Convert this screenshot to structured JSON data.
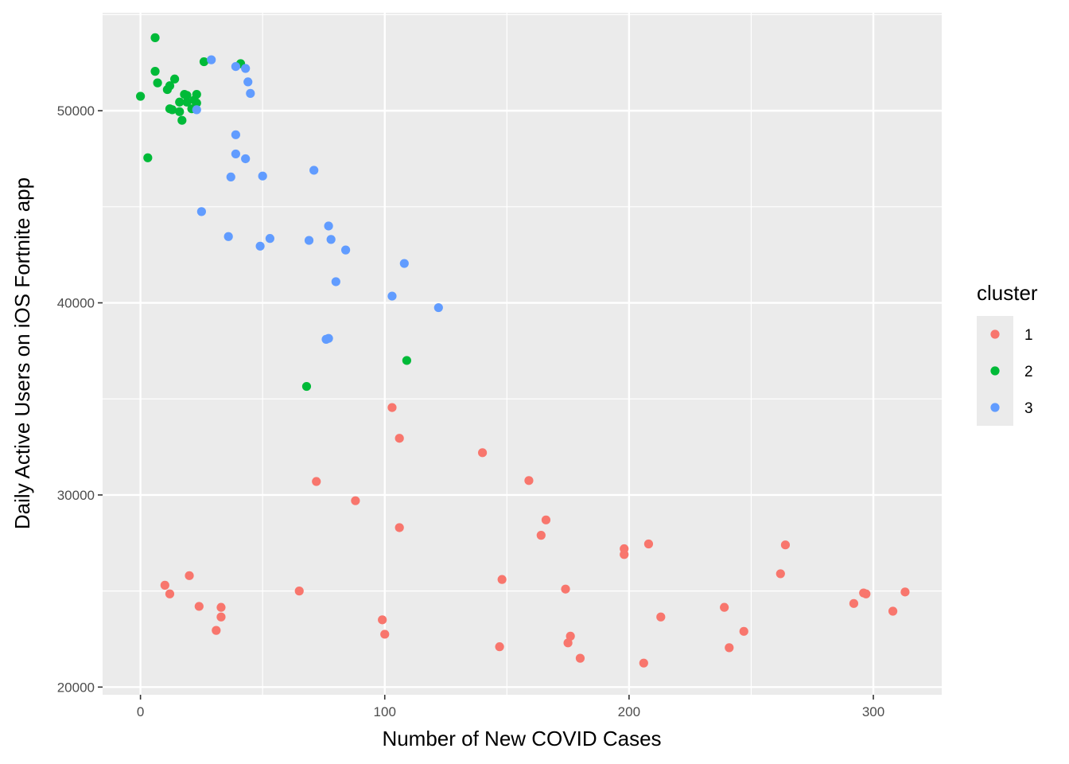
{
  "chart_data": {
    "type": "scatter",
    "title": "",
    "xlabel": "Number of New COVID Cases",
    "ylabel": "Daily Active Users on iOS Fortnite app",
    "xlim": [
      -15.5,
      328
    ],
    "ylim": [
      19600,
      55100
    ],
    "x_ticks": [
      0,
      100,
      200,
      300
    ],
    "y_ticks": [
      20000,
      30000,
      40000,
      50000
    ],
    "x_tick_labels": [
      "0",
      "100",
      "200",
      "300"
    ],
    "y_tick_labels": [
      "20000",
      "30000",
      "40000",
      "50000"
    ],
    "grid": true,
    "legend": {
      "title": "cluster",
      "position": "right"
    },
    "series": [
      {
        "name": "1",
        "color": "#F8766D",
        "points": [
          [
            10,
            25300
          ],
          [
            12,
            24850
          ],
          [
            20,
            25800
          ],
          [
            24,
            24200
          ],
          [
            31,
            22950
          ],
          [
            33,
            23650
          ],
          [
            33,
            24150
          ],
          [
            65,
            25000
          ],
          [
            72,
            30700
          ],
          [
            88,
            29700
          ],
          [
            99,
            23500
          ],
          [
            100,
            22750
          ],
          [
            103,
            34550
          ],
          [
            106,
            32950
          ],
          [
            106,
            28300
          ],
          [
            140,
            32200
          ],
          [
            147,
            22100
          ],
          [
            148,
            25600
          ],
          [
            159,
            30750
          ],
          [
            164,
            27900
          ],
          [
            166,
            28700
          ],
          [
            174,
            25100
          ],
          [
            175,
            22300
          ],
          [
            176,
            22650
          ],
          [
            180,
            21500
          ],
          [
            198,
            26900
          ],
          [
            198,
            27200
          ],
          [
            206,
            21250
          ],
          [
            208,
            27450
          ],
          [
            213,
            23650
          ],
          [
            239,
            24150
          ],
          [
            241,
            22050
          ],
          [
            247,
            22900
          ],
          [
            262,
            25900
          ],
          [
            264,
            27400
          ],
          [
            292,
            24350
          ],
          [
            296,
            24900
          ],
          [
            297,
            24850
          ],
          [
            308,
            23950
          ],
          [
            313,
            24950
          ]
        ]
      },
      {
        "name": "2",
        "color": "#00BA38",
        "points": [
          [
            0,
            50750
          ],
          [
            3,
            47550
          ],
          [
            6,
            53800
          ],
          [
            6,
            52050
          ],
          [
            7,
            51450
          ],
          [
            11,
            51100
          ],
          [
            12,
            51300
          ],
          [
            12,
            50100
          ],
          [
            13,
            50050
          ],
          [
            14,
            51650
          ],
          [
            16,
            50450
          ],
          [
            16,
            49950
          ],
          [
            17,
            49500
          ],
          [
            18,
            50850
          ],
          [
            19,
            50450
          ],
          [
            19,
            50800
          ],
          [
            21,
            50100
          ],
          [
            22,
            50550
          ],
          [
            23,
            50850
          ],
          [
            23,
            50400
          ],
          [
            26,
            52550
          ],
          [
            41,
            52450
          ],
          [
            68,
            35650
          ],
          [
            109,
            37000
          ]
        ]
      },
      {
        "name": "3",
        "color": "#619CFF",
        "points": [
          [
            23,
            50050
          ],
          [
            25,
            44750
          ],
          [
            29,
            52650
          ],
          [
            36,
            43450
          ],
          [
            37,
            46550
          ],
          [
            39,
            52300
          ],
          [
            39,
            48750
          ],
          [
            39,
            47750
          ],
          [
            43,
            52200
          ],
          [
            43,
            47500
          ],
          [
            44,
            51500
          ],
          [
            45,
            50900
          ],
          [
            49,
            42950
          ],
          [
            50,
            46600
          ],
          [
            53,
            43350
          ],
          [
            69,
            43250
          ],
          [
            71,
            46900
          ],
          [
            76,
            38100
          ],
          [
            77,
            38150
          ],
          [
            77,
            44000
          ],
          [
            78,
            43300
          ],
          [
            80,
            41100
          ],
          [
            84,
            42750
          ],
          [
            103,
            40350
          ],
          [
            108,
            42050
          ],
          [
            122,
            39750
          ]
        ]
      }
    ]
  }
}
